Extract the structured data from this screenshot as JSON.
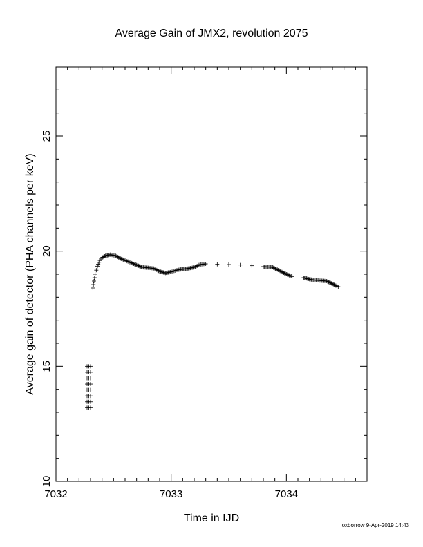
{
  "chart_data": {
    "type": "scatter",
    "title": "Average Gain of JMX2, revolution 2075",
    "xlabel": "Time in IJD",
    "ylabel": "Average gain of detector (PHA channels per keV)",
    "xlim": [
      7032,
      7034.7
    ],
    "ylim": [
      10,
      28
    ],
    "x_ticks": [
      7032,
      7033,
      7034
    ],
    "x_tick_labels": [
      "7032",
      "7033",
      "7034"
    ],
    "y_ticks": [
      10,
      15,
      20,
      25
    ],
    "y_tick_labels": [
      "10",
      "15",
      "20",
      "25"
    ],
    "grid": false,
    "marker": "+",
    "series_low": {
      "x": [
        7032.27,
        7032.285,
        7032.3
      ],
      "y_top": 15.0,
      "y_bottom": 13.2
    },
    "series_main": [
      [
        7032.32,
        18.4
      ],
      [
        7032.33,
        18.7
      ],
      [
        7032.34,
        19.0
      ],
      [
        7032.36,
        19.35
      ],
      [
        7032.38,
        19.6
      ],
      [
        7032.4,
        19.72
      ],
      [
        7032.43,
        19.8
      ],
      [
        7032.47,
        19.85
      ],
      [
        7032.52,
        19.8
      ],
      [
        7032.56,
        19.68
      ],
      [
        7032.6,
        19.6
      ],
      [
        7032.65,
        19.5
      ],
      [
        7032.7,
        19.4
      ],
      [
        7032.75,
        19.3
      ],
      [
        7032.8,
        19.28
      ],
      [
        7032.85,
        19.25
      ],
      [
        7032.9,
        19.12
      ],
      [
        7032.95,
        19.05
      ],
      [
        7033.0,
        19.1
      ],
      [
        7033.05,
        19.18
      ],
      [
        7033.1,
        19.22
      ],
      [
        7033.15,
        19.25
      ],
      [
        7033.2,
        19.3
      ],
      [
        7033.25,
        19.42
      ],
      [
        7033.3,
        19.45
      ],
      [
        7033.4,
        19.43
      ],
      [
        7033.5,
        19.42
      ],
      [
        7033.6,
        19.4
      ],
      [
        7033.7,
        19.37
      ],
      [
        7033.8,
        19.33
      ],
      [
        7033.88,
        19.3
      ],
      [
        7033.93,
        19.18
      ],
      [
        7034.0,
        19.0
      ],
      [
        7034.05,
        18.9
      ],
      [
        7034.15,
        18.85
      ],
      [
        7034.2,
        18.78
      ],
      [
        7034.25,
        18.74
      ],
      [
        7034.3,
        18.72
      ],
      [
        7034.35,
        18.7
      ],
      [
        7034.4,
        18.58
      ],
      [
        7034.43,
        18.5
      ],
      [
        7034.45,
        18.46
      ]
    ],
    "footer": "oxborrow  9-Apr-2019 14:43"
  }
}
